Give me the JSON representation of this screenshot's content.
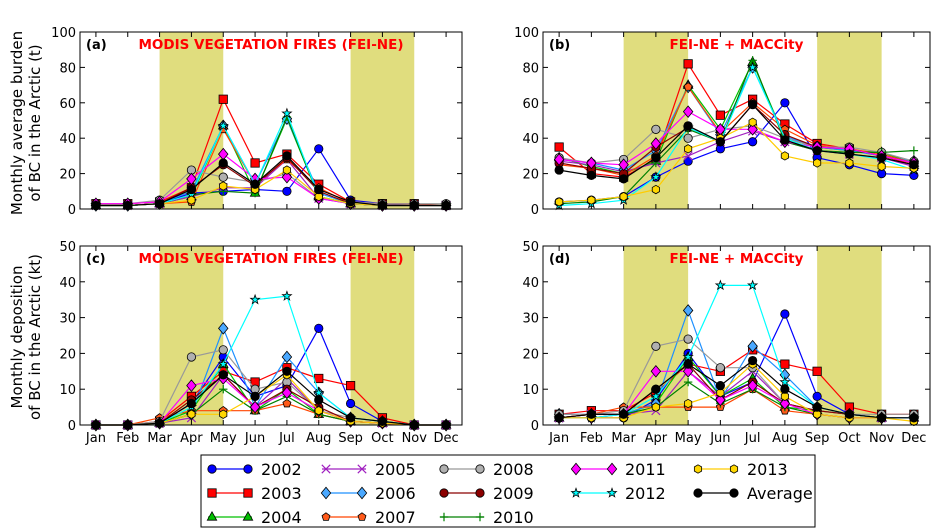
{
  "figure": {
    "row_labels": [
      [
        "Monthly average burden",
        "of BC in the Arctic (t)"
      ],
      [
        "Monthly deposition",
        "of BC in the Arctic (kt)"
      ]
    ]
  },
  "months": [
    "Jan",
    "Feb",
    "Mar",
    "Apr",
    "May",
    "Jun",
    "Jul",
    "Aug",
    "Sep",
    "Oct",
    "Nov",
    "Dec"
  ],
  "shading": {
    "color": "#e0dd7e",
    "spans": [
      [
        2,
        4
      ],
      [
        8,
        10
      ]
    ]
  },
  "legend": [
    {
      "name": "2002",
      "color": "#0000ff",
      "marker": "circle",
      "fill": "#0000ff"
    },
    {
      "name": "2003",
      "color": "#ff0000",
      "marker": "square",
      "fill": "#ff0000"
    },
    {
      "name": "2004",
      "color": "#00c000",
      "marker": "triangle",
      "fill": "#00c000"
    },
    {
      "name": "2005",
      "color": "#a020c0",
      "marker": "x",
      "fill": "none"
    },
    {
      "name": "2006",
      "color": "#1e90ff",
      "marker": "diamond",
      "fill": "#4aa8ff"
    },
    {
      "name": "2007",
      "color": "#ff4500",
      "marker": "pentagon",
      "fill": "#ff5a1a"
    },
    {
      "name": "2008",
      "color": "#999999",
      "marker": "circle",
      "fill": "#b0b0b0"
    },
    {
      "name": "2009",
      "color": "#8b0000",
      "marker": "circle",
      "fill": "#8b0000"
    },
    {
      "name": "2010",
      "color": "#008000",
      "marker": "plus",
      "fill": "none"
    },
    {
      "name": "2011",
      "color": "#ff00ff",
      "marker": "diamond",
      "fill": "#ff00ff"
    },
    {
      "name": "2012",
      "color": "#00ffff",
      "marker": "star",
      "fill": "#00ffff"
    },
    {
      "name": "Average",
      "color": "#000000",
      "marker": "circle",
      "fill": "#000000"
    },
    {
      "name": "2013",
      "color": "#ffcc00",
      "marker": "hexagon",
      "fill": "#ffd700"
    }
  ],
  "chart_data": [
    {
      "panel": "(a)",
      "type": "line",
      "title": "MODIS VEGETATION FIRES (FEI-NE)",
      "ylim": [
        0,
        100
      ],
      "yticks": [
        0,
        20,
        40,
        60,
        80,
        100
      ],
      "categories": [
        "Jan",
        "Feb",
        "Mar",
        "Apr",
        "May",
        "Jun",
        "Jul",
        "Aug",
        "Sep",
        "Oct",
        "Nov",
        "Dec"
      ],
      "series": [
        {
          "name": "2002",
          "values": [
            2,
            2,
            3,
            9,
            10,
            11,
            10,
            34,
            5,
            3,
            2,
            2
          ]
        },
        {
          "name": "2003",
          "values": [
            3,
            3,
            4,
            12,
            62,
            26,
            31,
            14,
            4,
            3,
            3,
            2
          ]
        },
        {
          "name": "2004",
          "values": [
            2,
            2,
            3,
            7,
            47,
            9,
            51,
            7,
            3,
            2,
            2,
            2
          ]
        },
        {
          "name": "2005",
          "values": [
            2,
            2,
            3,
            7,
            12,
            12,
            28,
            6,
            3,
            2,
            2,
            2
          ]
        },
        {
          "name": "2006",
          "values": [
            2,
            2,
            3,
            10,
            47,
            14,
            51,
            9,
            3,
            2,
            2,
            2
          ]
        },
        {
          "name": "2007",
          "values": [
            2,
            2,
            3,
            4,
            45,
            14,
            28,
            12,
            3,
            2,
            2,
            2
          ]
        },
        {
          "name": "2008",
          "values": [
            3,
            3,
            5,
            22,
            18,
            15,
            20,
            6,
            4,
            3,
            3,
            3
          ]
        },
        {
          "name": "2009",
          "values": [
            2,
            2,
            3,
            12,
            25,
            13,
            29,
            10,
            3,
            2,
            2,
            2
          ]
        },
        {
          "name": "2010",
          "values": [
            2,
            2,
            3,
            8,
            10,
            9,
            52,
            7,
            3,
            2,
            2,
            2
          ]
        },
        {
          "name": "2011",
          "values": [
            3,
            3,
            4,
            17,
            31,
            17,
            18,
            6,
            3,
            2,
            2,
            2
          ]
        },
        {
          "name": "2012",
          "values": [
            2,
            2,
            3,
            8,
            47,
            14,
            54,
            7,
            3,
            2,
            2,
            2
          ]
        },
        {
          "name": "2013",
          "values": [
            2,
            2,
            3,
            5,
            13,
            11,
            22,
            7,
            3,
            2,
            2,
            2
          ]
        },
        {
          "name": "Average",
          "values": [
            2,
            2,
            3,
            11,
            26,
            14,
            30,
            11,
            4,
            2,
            2,
            2
          ]
        }
      ]
    },
    {
      "panel": "(b)",
      "type": "line",
      "title": "FEI-NE + MACCity",
      "ylim": [
        0,
        100
      ],
      "yticks": [
        0,
        20,
        40,
        60,
        80,
        100
      ],
      "categories": [
        "Jan",
        "Feb",
        "Mar",
        "Apr",
        "May",
        "Jun",
        "Jul",
        "Aug",
        "Sep",
        "Oct",
        "Nov",
        "Dec"
      ],
      "series": [
        {
          "name": "2002",
          "values": [
            4,
            5,
            7,
            18,
            27,
            34,
            38,
            60,
            29,
            25,
            20,
            19
          ]
        },
        {
          "name": "2003",
          "values": [
            35,
            20,
            18,
            28,
            82,
            53,
            62,
            48,
            37,
            34,
            30,
            25
          ]
        },
        {
          "name": "2004",
          "values": [
            29,
            24,
            20,
            27,
            70,
            45,
            83,
            40,
            35,
            33,
            32,
            26
          ]
        },
        {
          "name": "2005",
          "values": [
            27,
            25,
            21,
            26,
            30,
            38,
            44,
            38,
            33,
            31,
            29,
            24
          ]
        },
        {
          "name": "2006",
          "values": [
            28,
            26,
            22,
            33,
            69,
            42,
            80,
            41,
            35,
            33,
            30,
            27
          ]
        },
        {
          "name": "2007",
          "values": [
            25,
            23,
            19,
            30,
            69,
            43,
            60,
            45,
            36,
            34,
            31,
            26
          ]
        },
        {
          "name": "2008",
          "values": [
            29,
            26,
            28,
            45,
            40,
            45,
            47,
            40,
            35,
            35,
            32,
            27
          ]
        },
        {
          "name": "2009",
          "values": [
            26,
            23,
            20,
            35,
            46,
            38,
            59,
            42,
            35,
            34,
            30,
            26
          ]
        },
        {
          "name": "2010",
          "values": [
            3,
            4,
            7,
            26,
            45,
            38,
            84,
            38,
            33,
            32,
            32,
            33
          ]
        },
        {
          "name": "2011",
          "values": [
            28,
            26,
            25,
            37,
            55,
            45,
            45,
            38,
            35,
            34,
            30,
            26
          ]
        },
        {
          "name": "2012",
          "values": [
            2,
            3,
            5,
            18,
            46,
            38,
            80,
            40,
            33,
            31,
            28,
            22
          ]
        },
        {
          "name": "2013",
          "values": [
            4,
            5,
            7,
            11,
            34,
            40,
            49,
            30,
            26,
            26,
            24,
            23
          ]
        },
        {
          "name": "Average",
          "values": [
            22,
            19,
            17,
            29,
            47,
            38,
            59,
            39,
            33,
            31,
            29,
            25
          ]
        }
      ]
    },
    {
      "panel": "(c)",
      "type": "line",
      "title": "MODIS VEGETATION FIRES (FEI-NE)",
      "ylim": [
        0,
        50
      ],
      "yticks": [
        0,
        10,
        20,
        30,
        40,
        50
      ],
      "categories": [
        "Jan",
        "Feb",
        "Mar",
        "Apr",
        "May",
        "Jun",
        "Jul",
        "Aug",
        "Sep",
        "Oct",
        "Nov",
        "Dec"
      ],
      "series": [
        {
          "name": "2002",
          "values": [
            0,
            0,
            0.5,
            6,
            19,
            8,
            11,
            27,
            6,
            1,
            0,
            0
          ]
        },
        {
          "name": "2003",
          "values": [
            0,
            0,
            1,
            8,
            15,
            12,
            16,
            13,
            11,
            2,
            0,
            0
          ]
        },
        {
          "name": "2004",
          "values": [
            0,
            0,
            0.5,
            4,
            17,
            4,
            10,
            3,
            1,
            0.5,
            0,
            0
          ]
        },
        {
          "name": "2005",
          "values": [
            0,
            0,
            0.5,
            2,
            14,
            5,
            13,
            4,
            1,
            0.5,
            0,
            0
          ]
        },
        {
          "name": "2006",
          "values": [
            0,
            0,
            0.5,
            3,
            27,
            5,
            19,
            9,
            2,
            1,
            0,
            0
          ]
        },
        {
          "name": "2007",
          "values": [
            0,
            0,
            2,
            4,
            4,
            4,
            6,
            3,
            1,
            0.5,
            0,
            0
          ]
        },
        {
          "name": "2008",
          "values": [
            0,
            0,
            1,
            19,
            21,
            10,
            12,
            4,
            2,
            1,
            0,
            0
          ]
        },
        {
          "name": "2009",
          "values": [
            0,
            0,
            0.5,
            7,
            14,
            5,
            10,
            5,
            1,
            0.5,
            0,
            0
          ]
        },
        {
          "name": "2010",
          "values": [
            0,
            0,
            0.5,
            3,
            10,
            4,
            8,
            3,
            1,
            0.5,
            0,
            0
          ]
        },
        {
          "name": "2011",
          "values": [
            0,
            0,
            0.5,
            11,
            13,
            5,
            9,
            4,
            1,
            0.5,
            0,
            0
          ]
        },
        {
          "name": "2012",
          "values": [
            0,
            0,
            0.5,
            5,
            17,
            35,
            36,
            9,
            2,
            1,
            0,
            0
          ]
        },
        {
          "name": "2013",
          "values": [
            0,
            0,
            0.5,
            3,
            3,
            8,
            14,
            4,
            1,
            0.5,
            0,
            0
          ]
        },
        {
          "name": "Average",
          "values": [
            0,
            0,
            0.5,
            6,
            14,
            8,
            15,
            7,
            2,
            1,
            0,
            0
          ]
        }
      ]
    },
    {
      "panel": "(d)",
      "type": "line",
      "title": "FEI-NE + MACCity",
      "ylim": [
        0,
        50
      ],
      "yticks": [
        0,
        10,
        20,
        30,
        40,
        50
      ],
      "categories": [
        "Jan",
        "Feb",
        "Mar",
        "Apr",
        "May",
        "Jun",
        "Jul",
        "Aug",
        "Sep",
        "Oct",
        "Nov",
        "Dec"
      ],
      "series": [
        {
          "name": "2002",
          "values": [
            2,
            2,
            2,
            7,
            20,
            8,
            12,
            31,
            8,
            3,
            2,
            2
          ]
        },
        {
          "name": "2003",
          "values": [
            3,
            4,
            4,
            9,
            17,
            15,
            21,
            17,
            15,
            5,
            3,
            3
          ]
        },
        {
          "name": "2004",
          "values": [
            2,
            3,
            3,
            6,
            19,
            8,
            13,
            5,
            4,
            3,
            2,
            2
          ]
        },
        {
          "name": "2005",
          "values": [
            2,
            3,
            3,
            4,
            15,
            8,
            15,
            6,
            4,
            3,
            2,
            2
          ]
        },
        {
          "name": "2006",
          "values": [
            3,
            3,
            3,
            6,
            32,
            7,
            22,
            14,
            5,
            3,
            2,
            2
          ]
        },
        {
          "name": "2007",
          "values": [
            2,
            3,
            5,
            5,
            5,
            5,
            10,
            4,
            3,
            2,
            2,
            2
          ]
        },
        {
          "name": "2008",
          "values": [
            3,
            3,
            4,
            22,
            24,
            16,
            16,
            6,
            4,
            3,
            3,
            3
          ]
        },
        {
          "name": "2009",
          "values": [
            2,
            3,
            3,
            10,
            17,
            7,
            12,
            6,
            4,
            3,
            2,
            2
          ]
        },
        {
          "name": "2010",
          "values": [
            2,
            2,
            3,
            5,
            12,
            6,
            10,
            5,
            3,
            2,
            2,
            2
          ]
        },
        {
          "name": "2011",
          "values": [
            2,
            2,
            3,
            15,
            15,
            7,
            11,
            6,
            3,
            2,
            2,
            2
          ]
        },
        {
          "name": "2012",
          "values": [
            2,
            2,
            3,
            8,
            19,
            39,
            39,
            12,
            5,
            3,
            2,
            2
          ]
        },
        {
          "name": "2013",
          "values": [
            2,
            2,
            2,
            5,
            6,
            9,
            17,
            8,
            3,
            2,
            2,
            1
          ]
        },
        {
          "name": "Average",
          "values": [
            2,
            3,
            3,
            10,
            17,
            11,
            18,
            10,
            5,
            3,
            2,
            2
          ]
        }
      ]
    }
  ]
}
